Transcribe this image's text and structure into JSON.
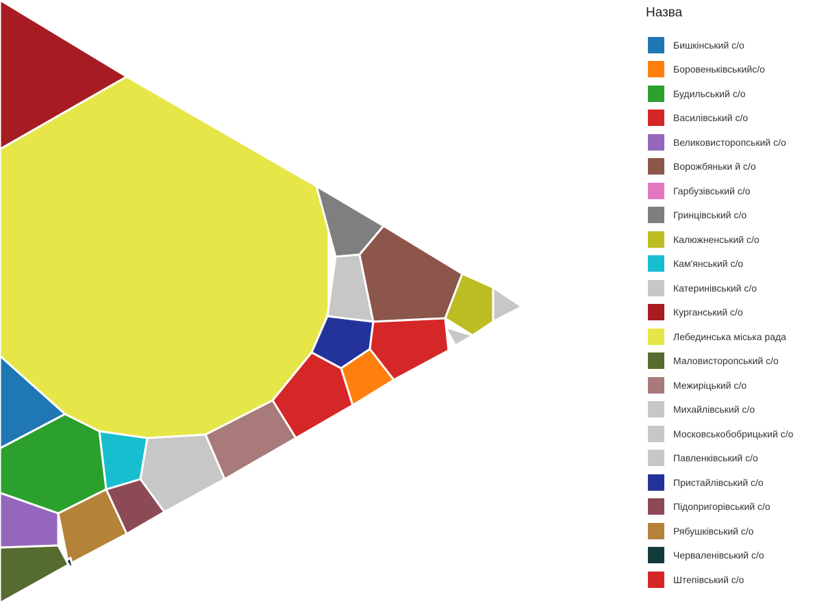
{
  "chart_data": {
    "type": "voronoi-treemap",
    "legend": {
      "title": "Назва",
      "placement": "right"
    },
    "series": [
      {
        "name": "Бишкінський с/о",
        "color": "#1f77b4"
      },
      {
        "name": "Боровеньківськийс/о",
        "color": "#ff7f0e"
      },
      {
        "name": "Будильський с/о",
        "color": "#2ca02c"
      },
      {
        "name": "Василівський с/о",
        "color": "#d62728"
      },
      {
        "name": "Великовисторопський с/о",
        "color": "#9467bd"
      },
      {
        "name": "Ворожбяньки й с/о",
        "color": "#8c564b"
      },
      {
        "name": "Гарбузівський с/о",
        "color": "#e377c2"
      },
      {
        "name": "Гринцівський с/о",
        "color": "#7f7f7f"
      },
      {
        "name": "Калюжненський с/о",
        "color": "#bcbd22"
      },
      {
        "name": "Кам'янський с/о",
        "color": "#17becf"
      },
      {
        "name": "Катеринівський с/о",
        "color": "#c7c7c7"
      },
      {
        "name": "Курганський с/о",
        "color": "#a61c22"
      },
      {
        "name": "Лебединська міська рада",
        "color": "#e6e649"
      },
      {
        "name": "Маловисторопський с/о",
        "color": "#556b2f"
      },
      {
        "name": "Межиріцький с/о",
        "color": "#a87a7a"
      },
      {
        "name": "Михайлівський с/о",
        "color": "#c7c7c7"
      },
      {
        "name": "Московськобобрицький с/о",
        "color": "#c7c7c7"
      },
      {
        "name": "Павленківський с/о",
        "color": "#c7c7c7"
      },
      {
        "name": "Пристайлівський с/о",
        "color": "#23339a"
      },
      {
        "name": "Підопригорівський с/о",
        "color": "#8c4a57"
      },
      {
        "name": "Рябушківський с/о",
        "color": "#b5823a"
      },
      {
        "name": "Черваленівський с/о",
        "color": "#143b3b"
      },
      {
        "name": "Штепівський с/о",
        "color": "#d62728"
      }
    ]
  }
}
